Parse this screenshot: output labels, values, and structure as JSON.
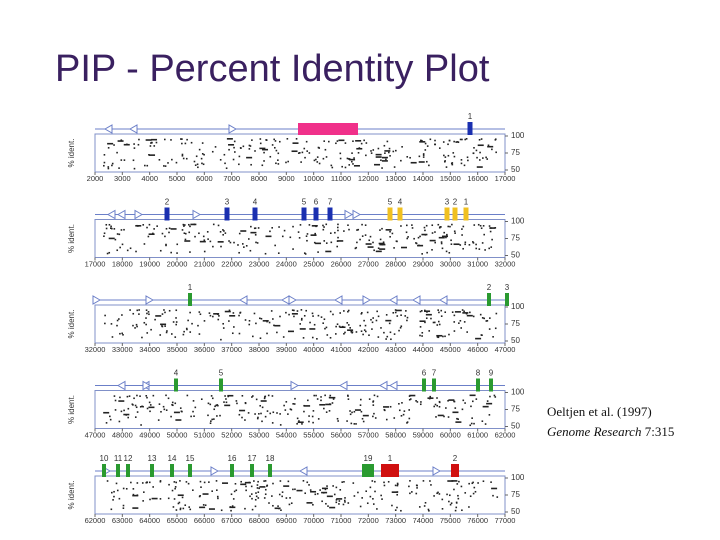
{
  "title": "PIP - Percent Identity Plot",
  "citation": {
    "authors": "Oeltjen et al. (1997)",
    "journal": "Genome Research",
    "volume": "7:315"
  },
  "panels": [
    {
      "ylabel": "% ident.",
      "yticks": [
        "100",
        "75",
        "50"
      ],
      "xticks": [
        "2000",
        "3000",
        "4000",
        "5000",
        "6000",
        "7000",
        "8000",
        "9000",
        "10000",
        "11000",
        "12000",
        "13000",
        "14000",
        "15000",
        "16000",
        "17000"
      ],
      "exons": [
        {
          "label": "1",
          "color": "#1a2fb0"
        }
      ]
    },
    {
      "ylabel": "% ident.",
      "yticks": [
        "100",
        "75",
        "50"
      ],
      "xticks": [
        "17000",
        "18000",
        "19000",
        "20000",
        "21000",
        "22000",
        "23000",
        "24000",
        "25000",
        "26000",
        "27000",
        "28000",
        "29000",
        "30000",
        "31000",
        "32000"
      ],
      "exons": [
        {
          "label": "2",
          "color": "#1a2fb0"
        },
        {
          "label": "3",
          "color": "#1a2fb0"
        },
        {
          "label": "4",
          "color": "#1a2fb0"
        },
        {
          "label": "5",
          "color": "#1a2fb0"
        },
        {
          "label": "6",
          "color": "#1a2fb0"
        },
        {
          "label": "7",
          "color": "#1a2fb0"
        },
        {
          "label": "5",
          "color": "#f0c020"
        },
        {
          "label": "4",
          "color": "#f0c020"
        },
        {
          "label": "3",
          "color": "#f0c020"
        },
        {
          "label": "2",
          "color": "#f0c020"
        },
        {
          "label": "1",
          "color": "#f0c020"
        }
      ]
    },
    {
      "ylabel": "% ident.",
      "yticks": [
        "100",
        "75",
        "50"
      ],
      "xticks": [
        "32000",
        "33000",
        "34000",
        "35000",
        "36000",
        "37000",
        "38000",
        "39000",
        "40000",
        "41000",
        "42000",
        "43000",
        "44000",
        "45000",
        "46000",
        "47000"
      ],
      "exons": [
        {
          "label": "1",
          "color": "#2a9a30"
        },
        {
          "label": "2",
          "color": "#2a9a30"
        },
        {
          "label": "3",
          "color": "#2a9a30"
        }
      ]
    },
    {
      "ylabel": "% ident.",
      "yticks": [
        "100",
        "75",
        "50"
      ],
      "xticks": [
        "47000",
        "48000",
        "49000",
        "50000",
        "51000",
        "52000",
        "53000",
        "54000",
        "55000",
        "56000",
        "57000",
        "58000",
        "59000",
        "60000",
        "61000",
        "62000"
      ],
      "exons": [
        {
          "label": "4",
          "color": "#2a9a30"
        },
        {
          "label": "5",
          "color": "#2a9a30"
        },
        {
          "label": "6",
          "color": "#2a9a30"
        },
        {
          "label": "7",
          "color": "#2a9a30"
        },
        {
          "label": "8",
          "color": "#2a9a30"
        },
        {
          "label": "9",
          "color": "#2a9a30"
        }
      ]
    },
    {
      "ylabel": "% ident.",
      "yticks": [
        "100",
        "75",
        "50"
      ],
      "xticks": [
        "62000",
        "63000",
        "64000",
        "65000",
        "66000",
        "67000",
        "68000",
        "69000",
        "70000",
        "71000",
        "72000",
        "73000",
        "74000",
        "75000",
        "76000",
        "77000"
      ],
      "exons": [
        {
          "label": "10",
          "color": "#2a9a30"
        },
        {
          "label": "11",
          "color": "#2a9a30"
        },
        {
          "label": "12",
          "color": "#2a9a30"
        },
        {
          "label": "13",
          "color": "#2a9a30"
        },
        {
          "label": "14",
          "color": "#2a9a30"
        },
        {
          "label": "15",
          "color": "#2a9a30"
        },
        {
          "label": "16",
          "color": "#2a9a30"
        },
        {
          "label": "17",
          "color": "#2a9a30"
        },
        {
          "label": "18",
          "color": "#2a9a30"
        },
        {
          "label": "19",
          "color": "#2a9a30"
        },
        {
          "label": "1",
          "color": "#d01010"
        },
        {
          "label": "2",
          "color": "#d01010"
        }
      ]
    }
  ]
}
